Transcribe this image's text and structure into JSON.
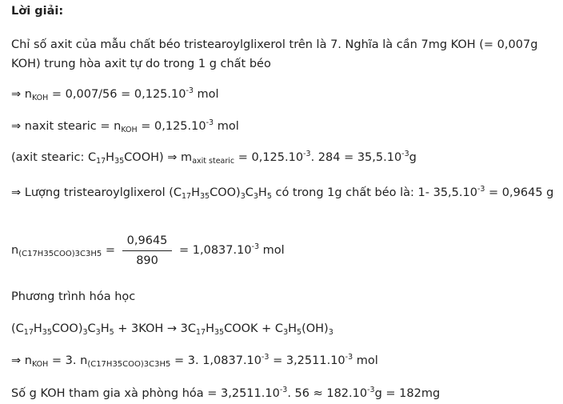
{
  "title": "Lời giải:",
  "p1": "Chỉ số axit của mẫu chất béo tristearoylglixerol trên là 7. Nghĩa là cần 7mg KOH (= 0,007g KOH) trung hòa axit tự do trong 1 g chất béo",
  "l2": {
    "arrow": "⇒ n",
    "sub": "KOH",
    "eq": " = 0,007/56 = 0,125.10",
    "exp": "-3",
    "unit": " mol"
  },
  "l3": {
    "pre": "⇒ naxit stearic = n",
    "sub": "KOH",
    "eq": " = 0,125.10",
    "exp": "-3",
    "unit": " mol"
  },
  "l4": {
    "pre": "(axit stearic: C",
    "s1": "17",
    "m1": "H",
    "s2": "35",
    "m2": "COOH) ⇒ m",
    "s3": "axit stearic",
    "eq": " = 0,125.10",
    "e1": "-3",
    "mid": ". 284 = 35,5.10",
    "e2": "-3",
    "unit": "g"
  },
  "l5": {
    "pre": "⇒ Lượng tristearoylglixerol (C",
    "s1": "17",
    "m1": "H",
    "s2": "35",
    "m2": "COO)",
    "s3": "3",
    "m3": "C",
    "s4": "3",
    "m4": "H",
    "s5": "5",
    "tail": " có trong 1g chất béo là: 1- 35,5.10",
    "e1": "-3",
    "res": " = 0,9645 g"
  },
  "l6": {
    "n": "n",
    "sub": "(C17H35COO)3C3H5",
    "eq": " = ",
    "num": "0,9645",
    "den": "890",
    "res": " = 1,0837.10",
    "exp": "-3",
    "unit": " mol"
  },
  "l7": "Phương trình hóa học",
  "l8": {
    "a": "(C",
    "s1": "17",
    "b": "H",
    "s2": "35",
    "c": "COO)",
    "s3": "3",
    "d": "C",
    "s4": "3",
    "e": "H",
    "s5": "5",
    "f": " + 3KOH → 3C",
    "s6": "17",
    "g": "H",
    "s7": "35",
    "h": "COOK + C",
    "s8": "3",
    "i": "H",
    "s9": "5",
    "j": "(OH)",
    "s10": "3"
  },
  "l9": {
    "pre": "⇒ n",
    "sub": "KOH",
    "m": " = 3. n",
    "sub2": "(C17H35COO)3C3H5",
    "eq": " = 3. 1,0837.10",
    "e1": "-3",
    "res": " = 3,2511.10",
    "e2": "-3",
    "unit": " mol"
  },
  "l10": {
    "pre": "Số g KOH tham gia xà phòng hóa = 3,2511.10",
    "e1": "-3",
    "mid": ". 56 ≈ 182.10",
    "e2": "-3",
    "unit": "g = 182mg"
  }
}
